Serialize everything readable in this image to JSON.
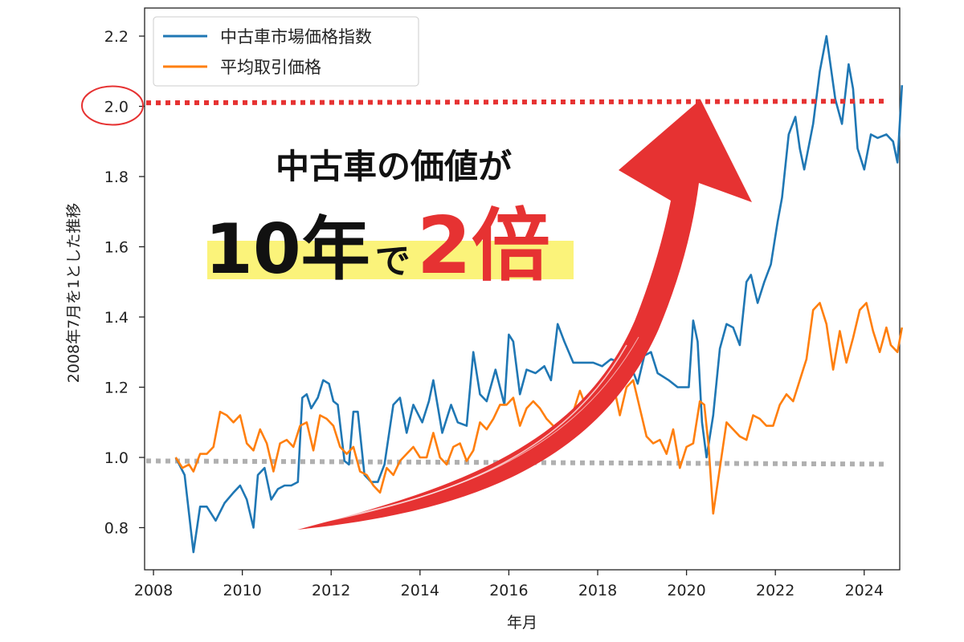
{
  "chart_data": {
    "type": "line",
    "xlabel": "年月",
    "ylabel": "2008年7月を1とした推移",
    "xlim": [
      2007.8,
      2024.8
    ],
    "ylim": [
      0.68,
      2.28
    ],
    "xticks": [
      2008,
      2010,
      2012,
      2014,
      2016,
      2018,
      2020,
      2022,
      2024
    ],
    "xtick_labels": [
      "2008",
      "2010",
      "2012",
      "2014",
      "2016",
      "2018",
      "2020",
      "2022",
      "2024"
    ],
    "yticks": [
      0.8,
      1.0,
      1.2,
      1.4,
      1.6,
      1.8,
      2.0,
      2.2
    ],
    "ytick_labels": [
      "0.8",
      "1.0",
      "1.2",
      "1.4",
      "1.6",
      "1.8",
      "2.0",
      "2.2"
    ],
    "legend": {
      "placement": "top-left"
    },
    "reference_lines": [
      {
        "name": "baseline",
        "y": 0.99,
        "color": "#b0b0b0",
        "style": "dotted"
      },
      {
        "name": "double",
        "y": 2.01,
        "color": "#e63232",
        "style": "dotted"
      }
    ],
    "series": [
      {
        "name": "中古車市場価格指数",
        "color": "#1f77b4",
        "points": [
          [
            2008.5,
            1.0
          ],
          [
            2008.7,
            0.95
          ],
          [
            2008.9,
            0.73
          ],
          [
            2009.05,
            0.86
          ],
          [
            2009.2,
            0.86
          ],
          [
            2009.4,
            0.82
          ],
          [
            2009.6,
            0.87
          ],
          [
            2009.8,
            0.9
          ],
          [
            2009.95,
            0.92
          ],
          [
            2010.1,
            0.88
          ],
          [
            2010.25,
            0.8
          ],
          [
            2010.35,
            0.95
          ],
          [
            2010.5,
            0.97
          ],
          [
            2010.65,
            0.88
          ],
          [
            2010.8,
            0.91
          ],
          [
            2010.95,
            0.92
          ],
          [
            2011.1,
            0.92
          ],
          [
            2011.25,
            0.93
          ],
          [
            2011.35,
            1.17
          ],
          [
            2011.45,
            1.18
          ],
          [
            2011.55,
            1.14
          ],
          [
            2011.7,
            1.17
          ],
          [
            2011.82,
            1.22
          ],
          [
            2011.95,
            1.21
          ],
          [
            2012.05,
            1.16
          ],
          [
            2012.15,
            1.15
          ],
          [
            2012.3,
            0.99
          ],
          [
            2012.4,
            0.98
          ],
          [
            2012.5,
            1.13
          ],
          [
            2012.6,
            1.13
          ],
          [
            2012.75,
            0.95
          ],
          [
            2012.9,
            0.93
          ],
          [
            2013.05,
            0.93
          ],
          [
            2013.2,
            0.98
          ],
          [
            2013.4,
            1.15
          ],
          [
            2013.55,
            1.17
          ],
          [
            2013.7,
            1.07
          ],
          [
            2013.85,
            1.15
          ],
          [
            2014.05,
            1.1
          ],
          [
            2014.2,
            1.16
          ],
          [
            2014.3,
            1.22
          ],
          [
            2014.5,
            1.07
          ],
          [
            2014.7,
            1.15
          ],
          [
            2014.85,
            1.1
          ],
          [
            2015.05,
            1.09
          ],
          [
            2015.2,
            1.3
          ],
          [
            2015.35,
            1.18
          ],
          [
            2015.5,
            1.16
          ],
          [
            2015.7,
            1.25
          ],
          [
            2015.9,
            1.15
          ],
          [
            2016.0,
            1.35
          ],
          [
            2016.1,
            1.33
          ],
          [
            2016.25,
            1.18
          ],
          [
            2016.4,
            1.25
          ],
          [
            2016.6,
            1.24
          ],
          [
            2016.8,
            1.26
          ],
          [
            2016.95,
            1.22
          ],
          [
            2017.1,
            1.38
          ],
          [
            2017.25,
            1.33
          ],
          [
            2017.45,
            1.27
          ],
          [
            2017.7,
            1.27
          ],
          [
            2017.9,
            1.27
          ],
          [
            2018.1,
            1.26
          ],
          [
            2018.3,
            1.28
          ],
          [
            2018.5,
            1.27
          ],
          [
            2018.75,
            1.26
          ],
          [
            2018.9,
            1.21
          ],
          [
            2019.05,
            1.29
          ],
          [
            2019.2,
            1.3
          ],
          [
            2019.35,
            1.24
          ],
          [
            2019.6,
            1.22
          ],
          [
            2019.8,
            1.2
          ],
          [
            2020.05,
            1.2
          ],
          [
            2020.15,
            1.39
          ],
          [
            2020.25,
            1.33
          ],
          [
            2020.35,
            1.1
          ],
          [
            2020.45,
            1.0
          ],
          [
            2020.6,
            1.12
          ],
          [
            2020.75,
            1.31
          ],
          [
            2020.9,
            1.38
          ],
          [
            2021.05,
            1.37
          ],
          [
            2021.2,
            1.32
          ],
          [
            2021.35,
            1.5
          ],
          [
            2021.45,
            1.52
          ],
          [
            2021.6,
            1.44
          ],
          [
            2021.75,
            1.5
          ],
          [
            2021.9,
            1.55
          ],
          [
            2022.05,
            1.67
          ],
          [
            2022.15,
            1.74
          ],
          [
            2022.3,
            1.92
          ],
          [
            2022.45,
            1.97
          ],
          [
            2022.55,
            1.88
          ],
          [
            2022.65,
            1.82
          ],
          [
            2022.85,
            1.95
          ],
          [
            2023.0,
            2.1
          ],
          [
            2023.15,
            2.2
          ],
          [
            2023.35,
            2.02
          ],
          [
            2023.5,
            1.95
          ],
          [
            2023.65,
            2.12
          ],
          [
            2023.75,
            2.05
          ],
          [
            2023.85,
            1.88
          ],
          [
            2024.0,
            1.82
          ],
          [
            2024.15,
            1.92
          ],
          [
            2024.3,
            1.91
          ],
          [
            2024.5,
            1.92
          ],
          [
            2024.65,
            1.9
          ],
          [
            2024.75,
            1.84
          ],
          [
            2024.85,
            2.06
          ]
        ]
      },
      {
        "name": "平均取引価格",
        "color": "#ff7f0e",
        "points": [
          [
            2008.5,
            1.0
          ],
          [
            2008.65,
            0.97
          ],
          [
            2008.8,
            0.98
          ],
          [
            2008.9,
            0.96
          ],
          [
            2009.05,
            1.01
          ],
          [
            2009.2,
            1.01
          ],
          [
            2009.35,
            1.03
          ],
          [
            2009.5,
            1.13
          ],
          [
            2009.65,
            1.12
          ],
          [
            2009.8,
            1.1
          ],
          [
            2009.95,
            1.12
          ],
          [
            2010.1,
            1.04
          ],
          [
            2010.25,
            1.02
          ],
          [
            2010.4,
            1.08
          ],
          [
            2010.55,
            1.04
          ],
          [
            2010.7,
            0.96
          ],
          [
            2010.85,
            1.04
          ],
          [
            2011.0,
            1.05
          ],
          [
            2011.15,
            1.03
          ],
          [
            2011.3,
            1.09
          ],
          [
            2011.45,
            1.1
          ],
          [
            2011.6,
            1.02
          ],
          [
            2011.75,
            1.12
          ],
          [
            2011.9,
            1.11
          ],
          [
            2012.05,
            1.09
          ],
          [
            2012.2,
            1.03
          ],
          [
            2012.35,
            1.01
          ],
          [
            2012.5,
            1.03
          ],
          [
            2012.65,
            0.96
          ],
          [
            2012.8,
            0.95
          ],
          [
            2012.95,
            0.92
          ],
          [
            2013.1,
            0.9
          ],
          [
            2013.25,
            0.97
          ],
          [
            2013.4,
            0.95
          ],
          [
            2013.55,
            0.99
          ],
          [
            2013.7,
            1.01
          ],
          [
            2013.85,
            1.03
          ],
          [
            2014.0,
            1.0
          ],
          [
            2014.15,
            1.0
          ],
          [
            2014.3,
            1.07
          ],
          [
            2014.45,
            1.0
          ],
          [
            2014.6,
            0.98
          ],
          [
            2014.75,
            1.03
          ],
          [
            2014.9,
            1.04
          ],
          [
            2015.05,
            0.99
          ],
          [
            2015.2,
            1.02
          ],
          [
            2015.35,
            1.1
          ],
          [
            2015.5,
            1.08
          ],
          [
            2015.65,
            1.11
          ],
          [
            2015.8,
            1.15
          ],
          [
            2015.95,
            1.15
          ],
          [
            2016.1,
            1.17
          ],
          [
            2016.25,
            1.09
          ],
          [
            2016.4,
            1.14
          ],
          [
            2016.55,
            1.16
          ],
          [
            2016.7,
            1.14
          ],
          [
            2016.85,
            1.11
          ],
          [
            2017.0,
            1.09
          ],
          [
            2017.15,
            1.06
          ],
          [
            2017.3,
            1.09
          ],
          [
            2017.45,
            1.13
          ],
          [
            2017.6,
            1.19
          ],
          [
            2017.75,
            1.14
          ],
          [
            2017.9,
            1.12
          ],
          [
            2018.05,
            1.17
          ],
          [
            2018.2,
            1.2
          ],
          [
            2018.35,
            1.21
          ],
          [
            2018.5,
            1.12
          ],
          [
            2018.65,
            1.2
          ],
          [
            2018.8,
            1.22
          ],
          [
            2018.95,
            1.14
          ],
          [
            2019.1,
            1.06
          ],
          [
            2019.25,
            1.04
          ],
          [
            2019.4,
            1.05
          ],
          [
            2019.55,
            1.01
          ],
          [
            2019.7,
            1.08
          ],
          [
            2019.85,
            0.97
          ],
          [
            2020.0,
            1.03
          ],
          [
            2020.15,
            1.04
          ],
          [
            2020.3,
            1.16
          ],
          [
            2020.4,
            1.15
          ],
          [
            2020.5,
            1.03
          ],
          [
            2020.6,
            0.84
          ],
          [
            2020.75,
            0.97
          ],
          [
            2020.9,
            1.1
          ],
          [
            2021.05,
            1.08
          ],
          [
            2021.2,
            1.06
          ],
          [
            2021.35,
            1.05
          ],
          [
            2021.5,
            1.12
          ],
          [
            2021.65,
            1.11
          ],
          [
            2021.8,
            1.09
          ],
          [
            2021.95,
            1.09
          ],
          [
            2022.1,
            1.15
          ],
          [
            2022.25,
            1.18
          ],
          [
            2022.4,
            1.16
          ],
          [
            2022.55,
            1.22
          ],
          [
            2022.7,
            1.28
          ],
          [
            2022.85,
            1.42
          ],
          [
            2023.0,
            1.44
          ],
          [
            2023.15,
            1.38
          ],
          [
            2023.3,
            1.25
          ],
          [
            2023.45,
            1.36
          ],
          [
            2023.6,
            1.27
          ],
          [
            2023.75,
            1.34
          ],
          [
            2023.9,
            1.42
          ],
          [
            2024.05,
            1.44
          ],
          [
            2024.2,
            1.36
          ],
          [
            2024.35,
            1.3
          ],
          [
            2024.5,
            1.37
          ],
          [
            2024.6,
            1.32
          ],
          [
            2024.75,
            1.3
          ],
          [
            2024.85,
            1.37
          ]
        ]
      }
    ]
  },
  "overlay": {
    "line1": "中古車の価値が",
    "line2_number": "10",
    "line2_unit": "年",
    "line2_particle": "で",
    "line2_emphasis": "2倍",
    "highlight_color": "#fbf37a",
    "emphasis_color": "#e63232",
    "arrow_color": "#e63232"
  }
}
